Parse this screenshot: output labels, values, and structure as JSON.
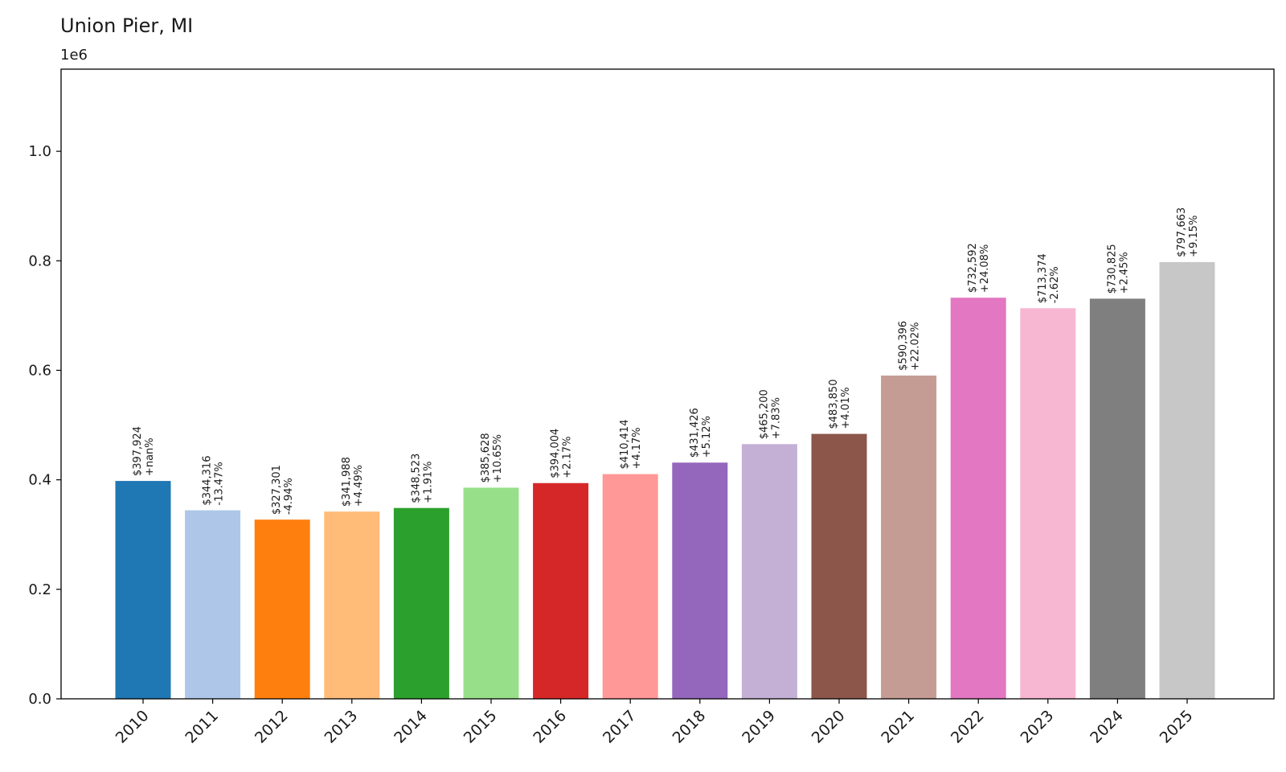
{
  "chart_data": {
    "type": "bar",
    "title": "Union Pier, MI",
    "xlabel": "",
    "ylabel": "",
    "y_offset_label": "1e6",
    "ylim": [
      0,
      1150000
    ],
    "yticks": [
      0.0,
      0.2,
      0.4,
      0.6,
      0.8,
      1.0
    ],
    "ytick_labels": [
      "0.0",
      "0.2",
      "0.4",
      "0.6",
      "0.8",
      "1.0"
    ],
    "categories": [
      "2010",
      "2011",
      "2012",
      "2013",
      "2014",
      "2015",
      "2016",
      "2017",
      "2018",
      "2019",
      "2020",
      "2021",
      "2022",
      "2023",
      "2024",
      "2025"
    ],
    "values": [
      397924,
      344316,
      327301,
      341988,
      348523,
      385628,
      394004,
      410414,
      431426,
      465200,
      483850,
      590396,
      732592,
      713374,
      730825,
      797663
    ],
    "value_labels": [
      "$397,924",
      "$344,316",
      "$327,301",
      "$341,988",
      "$348,523",
      "$385,628",
      "$394,004",
      "$410,414",
      "$431,426",
      "$465,200",
      "$483,850",
      "$590,396",
      "$732,592",
      "$713,374",
      "$730,825",
      "$797,663"
    ],
    "change_labels": [
      "+nan%",
      "-13.47%",
      "-4.94%",
      "+4.49%",
      "+1.91%",
      "+10.65%",
      "+2.17%",
      "+4.17%",
      "+5.12%",
      "+7.83%",
      "+4.01%",
      "+22.02%",
      "+24.08%",
      "-2.62%",
      "+2.45%",
      "+9.15%"
    ],
    "colors": [
      "#1f77b4",
      "#aec7e8",
      "#ff7f0e",
      "#ffbb78",
      "#2ca02c",
      "#98df8a",
      "#d62728",
      "#ff9896",
      "#9467bd",
      "#c5b0d5",
      "#8c564b",
      "#c49c94",
      "#e377c2",
      "#f7b6d2",
      "#7f7f7f",
      "#c7c7c7"
    ],
    "grid": false,
    "legend": "none"
  }
}
